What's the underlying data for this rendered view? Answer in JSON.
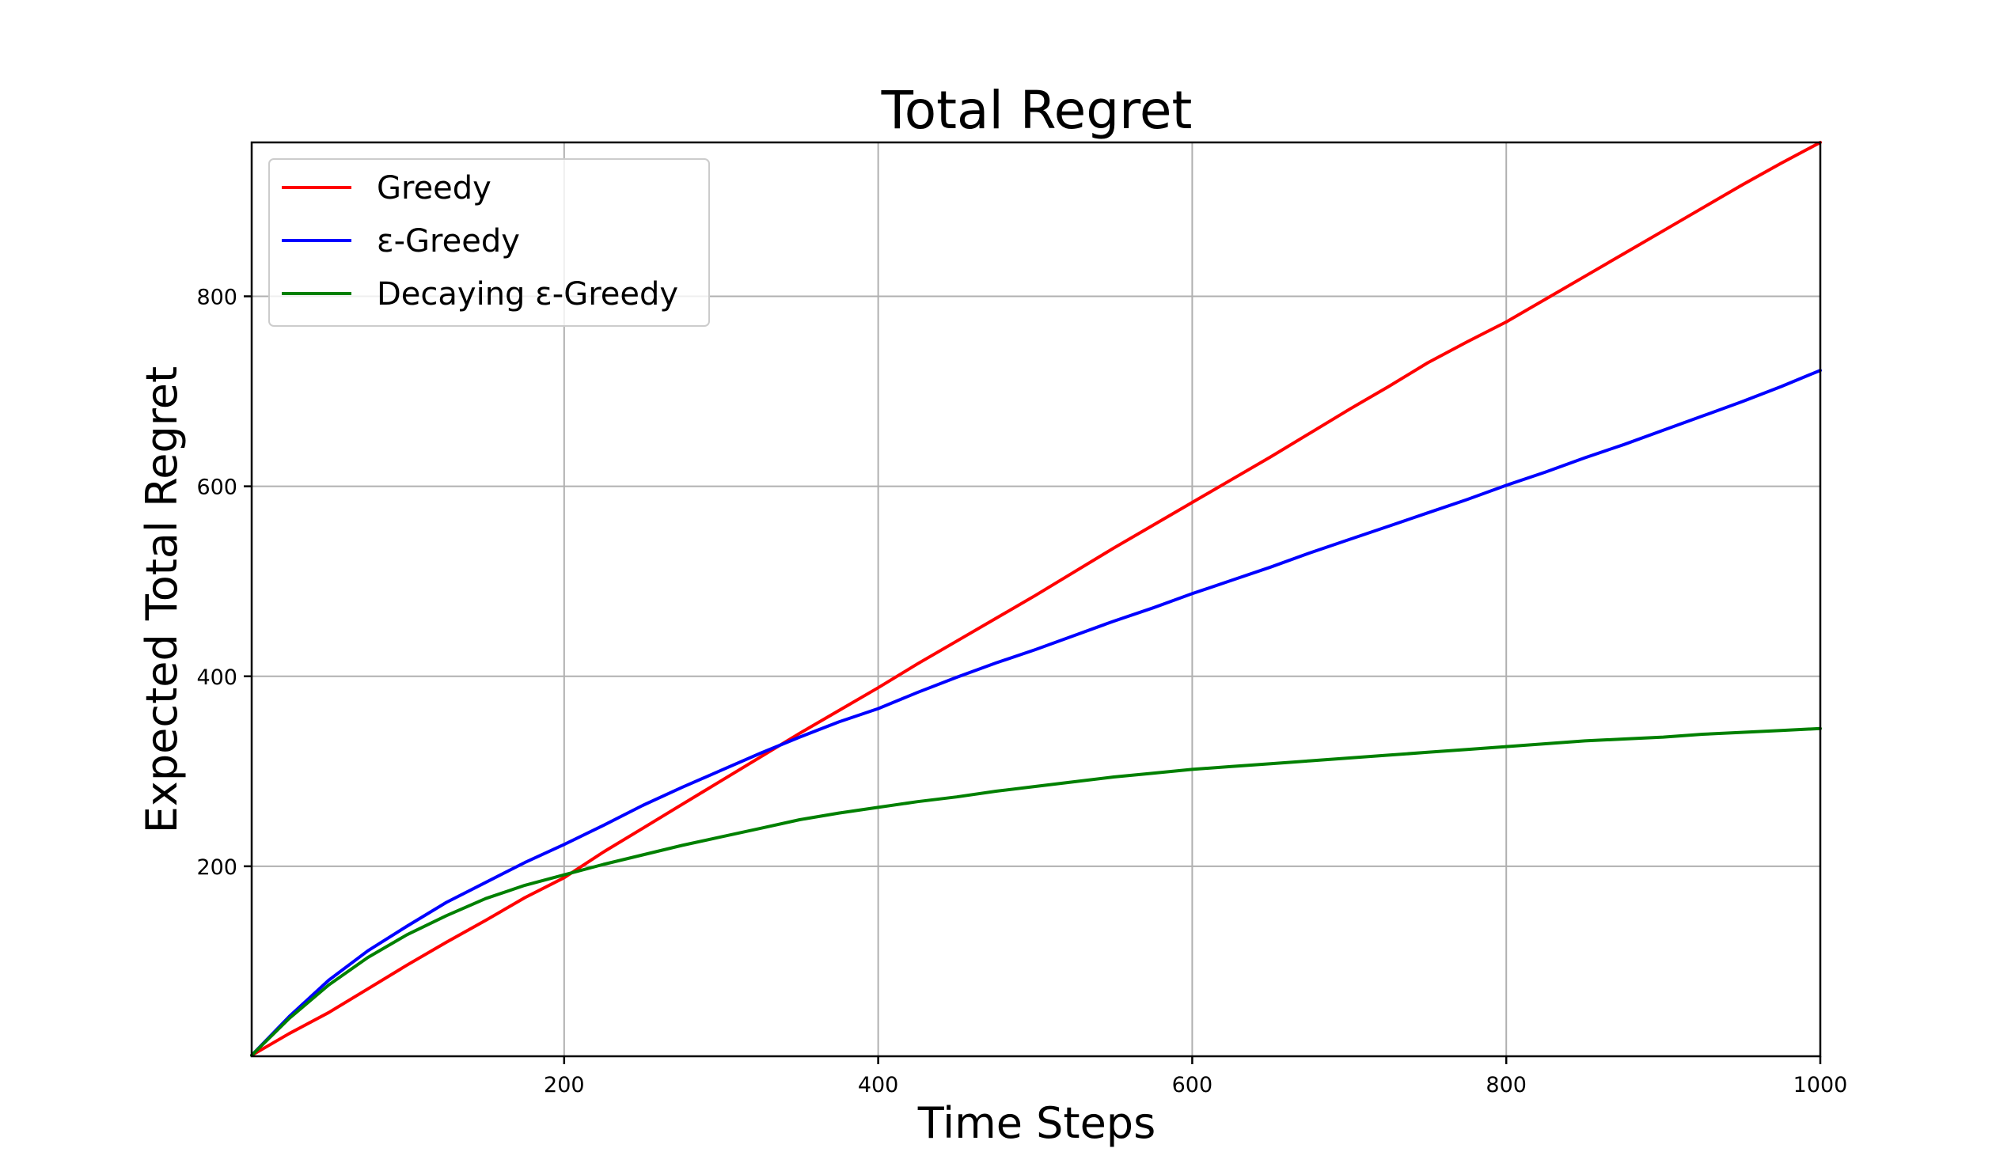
{
  "chart_data": {
    "type": "line",
    "title": "Total Regret",
    "xlabel": "Time Steps",
    "ylabel": "Expected Total Regret",
    "xlim": [
      1,
      1000
    ],
    "ylim": [
      0,
      962
    ],
    "xticks": [
      200,
      400,
      600,
      800,
      1000
    ],
    "yticks": [
      200,
      400,
      600,
      800
    ],
    "grid": true,
    "legend_position": "top-left",
    "x": [
      1,
      25,
      50,
      75,
      100,
      125,
      150,
      175,
      200,
      225,
      250,
      275,
      300,
      325,
      350,
      375,
      400,
      425,
      450,
      475,
      500,
      525,
      550,
      575,
      600,
      625,
      650,
      675,
      700,
      725,
      750,
      775,
      800,
      825,
      850,
      875,
      900,
      925,
      950,
      975,
      1000
    ],
    "series": [
      {
        "name": "Greedy",
        "color": "#ff0000",
        "values": [
          1,
          24,
          46,
          71,
          96,
          120,
          143,
          167,
          188,
          215,
          240,
          265,
          290,
          315,
          340,
          364,
          388,
          413,
          437,
          461,
          485,
          510,
          535,
          559,
          583,
          607,
          631,
          656,
          681,
          705,
          730,
          752,
          773,
          797,
          821,
          845,
          869,
          893,
          917,
          940,
          962
        ]
      },
      {
        "name": "ε-Greedy",
        "color": "#0000ff",
        "values": [
          1,
          42,
          80,
          111,
          137,
          162,
          183,
          204,
          223,
          243,
          264,
          283,
          301,
          319,
          336,
          352,
          366,
          383,
          399,
          414,
          428,
          443,
          458,
          472,
          487,
          501,
          515,
          530,
          544,
          558,
          572,
          586,
          601,
          615,
          630,
          644,
          659,
          674,
          689,
          705,
          722
        ]
      },
      {
        "name": "Decaying ε-Greedy",
        "color": "#008000",
        "values": [
          1,
          40,
          75,
          104,
          128,
          148,
          166,
          180,
          191,
          202,
          212,
          222,
          231,
          240,
          249,
          256,
          262,
          268,
          273,
          279,
          284,
          289,
          294,
          298,
          302,
          305,
          308,
          311,
          314,
          317,
          320,
          323,
          326,
          329,
          332,
          334,
          336,
          339,
          341,
          343,
          345
        ]
      }
    ]
  }
}
